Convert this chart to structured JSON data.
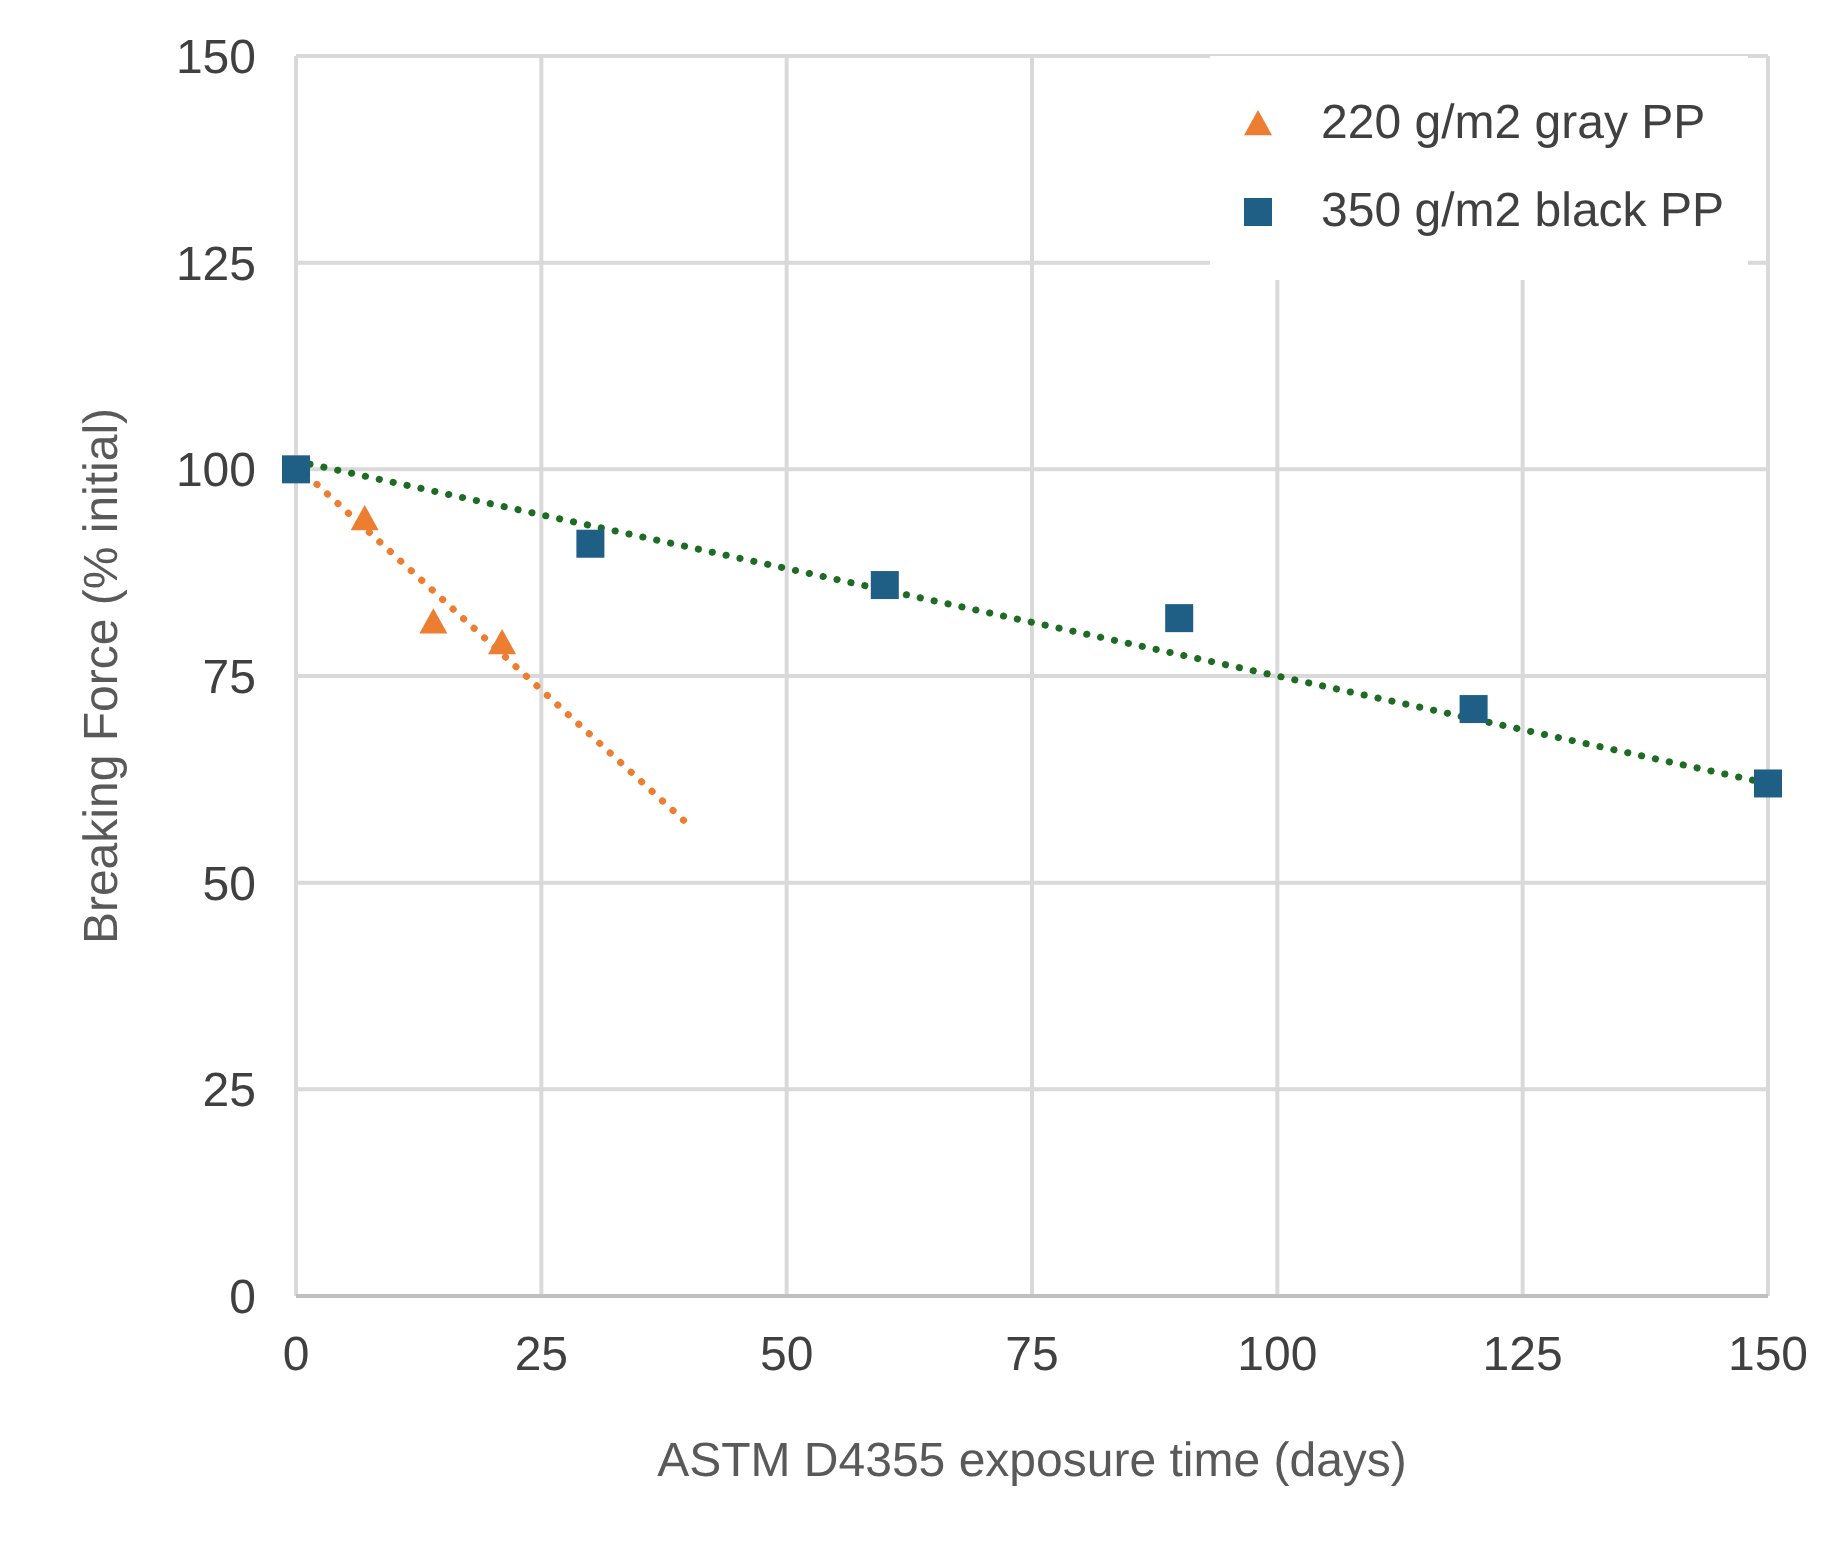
{
  "chart_data": {
    "type": "scatter",
    "xlabel": "ASTM D4355 exposure time (days)",
    "ylabel": "Breaking Force (% initial)",
    "xlim": [
      0,
      150
    ],
    "xticks": [
      0,
      25,
      50,
      75,
      100,
      125,
      150
    ],
    "ylim": [
      0,
      150
    ],
    "yticks": [
      0,
      25,
      50,
      75,
      100,
      125,
      150
    ],
    "grid": true,
    "legend": "top right",
    "series": [
      {
        "name": "220 g/m2 gray PP",
        "marker": "triangle",
        "color": "#ed7d31",
        "x": [
          7,
          14,
          21
        ],
        "values": [
          94,
          81.5,
          79
        ]
      },
      {
        "name": "350 g/m2 black PP",
        "marker": "square",
        "color": "#1f5f85",
        "x": [
          0,
          30,
          60,
          90,
          120,
          150
        ],
        "values": [
          100,
          91,
          86,
          82,
          71,
          62
        ]
      },
      {
        "type": "line",
        "marker": "none",
        "line_style": "dotted",
        "color": "#ed7d31",
        "x": [
          0,
          40
        ],
        "values": [
          100.5,
          57
        ]
      },
      {
        "type": "line",
        "marker": "none",
        "line_style": "dotted",
        "color": "#1e6b24",
        "x": [
          0,
          150
        ],
        "values": [
          101,
          62
        ]
      }
    ]
  }
}
